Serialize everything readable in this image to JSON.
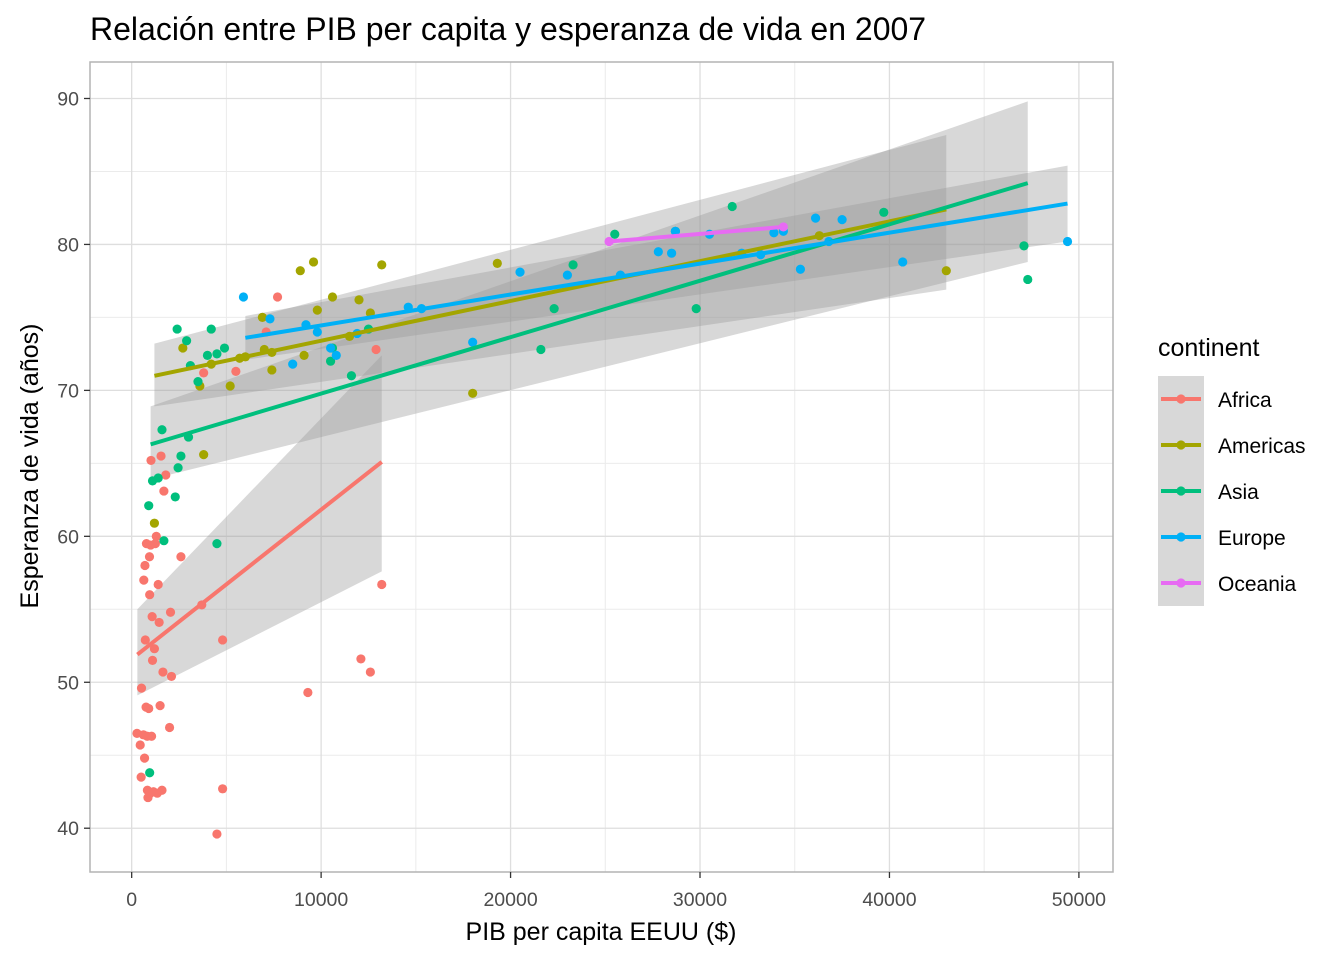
{
  "chart_data": {
    "type": "scatter",
    "title": "Relación entre PIB per capita y esperanza de vida en 2007",
    "xlabel": "PIB per capita EEUU ($)",
    "ylabel": "Esperanza de vida (años)",
    "xlim": [
      -2200,
      51800
    ],
    "ylim": [
      37,
      92.5
    ],
    "x_ticks": [
      0,
      10000,
      20000,
      30000,
      40000,
      50000
    ],
    "x_tick_labels": [
      "0",
      "10000",
      "20000",
      "30000",
      "40000",
      "50000"
    ],
    "y_ticks": [
      40,
      50,
      60,
      70,
      80,
      90
    ],
    "y_tick_labels": [
      "40",
      "50",
      "60",
      "70",
      "80",
      "90"
    ],
    "grid": true,
    "legend": {
      "title": "continent",
      "placement": "right",
      "entries": [
        "Africa",
        "Americas",
        "Asia",
        "Europe",
        "Oceania"
      ]
    },
    "series": [
      {
        "name": "Africa",
        "color": "#F8766D",
        "points": [
          [
            280,
            46.5
          ],
          [
            450,
            45.7
          ],
          [
            500,
            43.5
          ],
          [
            520,
            49.6
          ],
          [
            620,
            46.4
          ],
          [
            640,
            57.0
          ],
          [
            680,
            44.8
          ],
          [
            700,
            58.0
          ],
          [
            720,
            52.9
          ],
          [
            760,
            48.3
          ],
          [
            780,
            59.5
          ],
          [
            820,
            46.3
          ],
          [
            830,
            42.6
          ],
          [
            860,
            42.1
          ],
          [
            900,
            48.2
          ],
          [
            940,
            58.6
          ],
          [
            950,
            56.0
          ],
          [
            980,
            42.4
          ],
          [
            1000,
            59.4
          ],
          [
            1020,
            65.2
          ],
          [
            1050,
            46.3
          ],
          [
            1080,
            54.5
          ],
          [
            1100,
            51.5
          ],
          [
            1150,
            42.5
          ],
          [
            1200,
            52.3
          ],
          [
            1250,
            59.5
          ],
          [
            1300,
            60.0
          ],
          [
            1350,
            42.4
          ],
          [
            1400,
            56.7
          ],
          [
            1450,
            54.1
          ],
          [
            1500,
            48.4
          ],
          [
            1550,
            65.5
          ],
          [
            1600,
            42.6
          ],
          [
            1650,
            50.7
          ],
          [
            1700,
            63.1
          ],
          [
            1800,
            64.2
          ],
          [
            2000,
            46.9
          ],
          [
            2050,
            54.8
          ],
          [
            2100,
            50.4
          ],
          [
            2600,
            58.6
          ],
          [
            3700,
            55.3
          ],
          [
            3800,
            71.2
          ],
          [
            4500,
            39.6
          ],
          [
            4800,
            42.7
          ],
          [
            4800,
            52.9
          ],
          [
            5500,
            71.3
          ],
          [
            7100,
            74.0
          ],
          [
            7700,
            76.4
          ],
          [
            9300,
            49.3
          ],
          [
            12100,
            51.6
          ],
          [
            12600,
            50.7
          ],
          [
            12900,
            72.8
          ],
          [
            13200,
            56.7
          ]
        ],
        "trend": {
          "x": [
            300,
            13200
          ],
          "y": [
            51.9,
            65.1
          ],
          "band_lower": [
            49.1,
            57.6
          ],
          "band_upper": [
            55.0,
            72.4
          ]
        }
      },
      {
        "name": "Americas",
        "color": "#A3A500",
        "points": [
          [
            1200,
            60.9
          ],
          [
            2700,
            72.9
          ],
          [
            3600,
            70.3
          ],
          [
            3800,
            65.6
          ],
          [
            4200,
            71.8
          ],
          [
            5200,
            70.3
          ],
          [
            5700,
            72.2
          ],
          [
            6000,
            72.3
          ],
          [
            6900,
            75.0
          ],
          [
            7000,
            72.8
          ],
          [
            7400,
            71.4
          ],
          [
            7400,
            72.6
          ],
          [
            8900,
            78.2
          ],
          [
            9100,
            72.4
          ],
          [
            9600,
            78.8
          ],
          [
            9800,
            75.5
          ],
          [
            10600,
            76.4
          ],
          [
            11500,
            73.7
          ],
          [
            12000,
            76.2
          ],
          [
            12600,
            75.3
          ],
          [
            13200,
            78.6
          ],
          [
            18000,
            69.8
          ],
          [
            19300,
            78.7
          ],
          [
            36300,
            80.6
          ],
          [
            43000,
            78.2
          ]
        ],
        "trend": {
          "x": [
            1200,
            43000
          ],
          "y": [
            71.0,
            82.4
          ],
          "band_lower": [
            68.9,
            76.9
          ],
          "band_upper": [
            73.2,
            87.5
          ]
        }
      },
      {
        "name": "Asia",
        "color": "#00BF7D",
        "points": [
          [
            900,
            62.1
          ],
          [
            950,
            43.8
          ],
          [
            1100,
            63.8
          ],
          [
            1400,
            64.0
          ],
          [
            1600,
            67.3
          ],
          [
            1700,
            59.7
          ],
          [
            2300,
            62.7
          ],
          [
            2400,
            74.2
          ],
          [
            2450,
            64.7
          ],
          [
            2600,
            65.5
          ],
          [
            2900,
            73.4
          ],
          [
            3000,
            66.8
          ],
          [
            3100,
            71.7
          ],
          [
            3500,
            70.6
          ],
          [
            4000,
            72.4
          ],
          [
            4200,
            74.2
          ],
          [
            4500,
            59.5
          ],
          [
            4500,
            72.5
          ],
          [
            4900,
            72.9
          ],
          [
            10500,
            72.0
          ],
          [
            10600,
            72.9
          ],
          [
            11600,
            71.0
          ],
          [
            12500,
            74.2
          ],
          [
            21600,
            72.8
          ],
          [
            22300,
            75.6
          ],
          [
            23300,
            78.6
          ],
          [
            25500,
            80.7
          ],
          [
            28700,
            80.9
          ],
          [
            29800,
            75.6
          ],
          [
            31700,
            82.6
          ],
          [
            39700,
            82.2
          ],
          [
            47100,
            79.9
          ],
          [
            47300,
            77.6
          ]
        ],
        "trend": {
          "x": [
            1000,
            47300
          ],
          "y": [
            66.3,
            84.2
          ],
          "band_lower": [
            63.9,
            78.8
          ],
          "band_upper": [
            68.9,
            89.8
          ]
        }
      },
      {
        "name": "Europe",
        "color": "#00B0F6",
        "points": [
          [
            5900,
            76.4
          ],
          [
            7300,
            74.9
          ],
          [
            8500,
            71.8
          ],
          [
            9200,
            74.5
          ],
          [
            9800,
            74.0
          ],
          [
            10500,
            72.9
          ],
          [
            10800,
            72.4
          ],
          [
            11900,
            73.9
          ],
          [
            14600,
            75.7
          ],
          [
            15300,
            75.6
          ],
          [
            18000,
            73.3
          ],
          [
            20500,
            78.1
          ],
          [
            23000,
            77.9
          ],
          [
            25800,
            77.9
          ],
          [
            27800,
            79.5
          ],
          [
            28500,
            79.4
          ],
          [
            28700,
            80.9
          ],
          [
            30500,
            80.7
          ],
          [
            32200,
            79.4
          ],
          [
            33200,
            79.3
          ],
          [
            33900,
            80.8
          ],
          [
            34400,
            80.9
          ],
          [
            35300,
            78.3
          ],
          [
            36100,
            81.8
          ],
          [
            36800,
            80.2
          ],
          [
            37500,
            81.7
          ],
          [
            40700,
            78.8
          ],
          [
            49400,
            80.2
          ]
        ],
        "trend": {
          "x": [
            6000,
            49400
          ],
          "y": [
            73.6,
            82.8
          ],
          "band_lower": [
            72.1,
            80.2
          ],
          "band_upper": [
            75.1,
            85.4
          ]
        }
      },
      {
        "name": "Oceania",
        "color": "#E76BF3",
        "points": [
          [
            25200,
            80.2
          ],
          [
            34400,
            81.2
          ]
        ],
        "trend": {
          "x": [
            25200,
            34400
          ],
          "y": [
            80.2,
            81.2
          ],
          "band_lower": [
            80.2,
            81.2
          ],
          "band_upper": [
            80.2,
            81.2
          ]
        }
      }
    ]
  }
}
